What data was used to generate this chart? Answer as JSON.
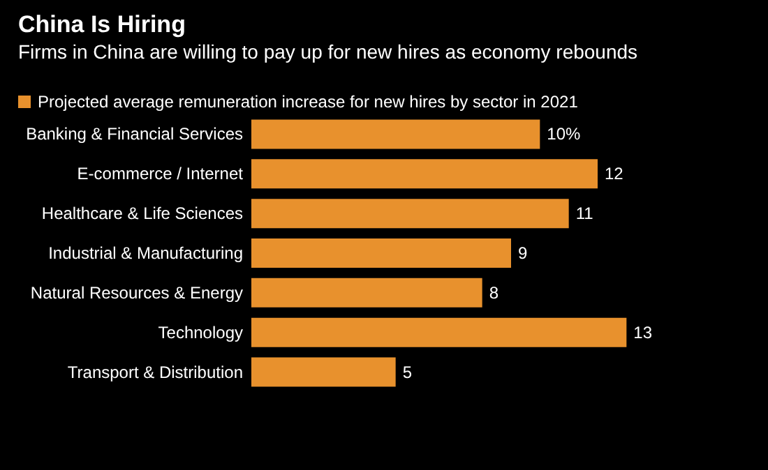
{
  "chart_data": {
    "type": "bar",
    "orientation": "horizontal",
    "title": "China Is Hiring",
    "subtitle": "Firms in China are willing to pay up for new hires as economy rebounds",
    "categories": [
      "Banking & Financial Services",
      "E-commerce / Internet",
      "Healthcare & Life Sciences",
      "Industrial & Manufacturing",
      "Natural Resources & Energy",
      "Technology",
      "Transport & Distribution"
    ],
    "series": [
      {
        "name": "Projected average remuneration increase for new hires by sector in 2021",
        "color": "#e8912d",
        "values": [
          10,
          12,
          11,
          9,
          8,
          13,
          5
        ],
        "value_labels": [
          "10%",
          "12",
          "11",
          "9",
          "8",
          "13",
          "5"
        ]
      }
    ],
    "legend": "top left"
  }
}
